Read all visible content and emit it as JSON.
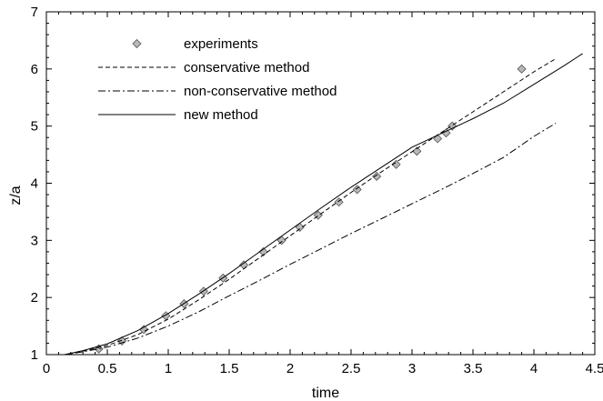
{
  "chart_data": {
    "type": "line",
    "title": "",
    "xlabel": "time",
    "ylabel": "z/a",
    "xlim": [
      0,
      4.5
    ],
    "ylim": [
      1,
      7
    ],
    "x_ticks": [
      "0",
      "0.5",
      "1",
      "1.5",
      "2",
      "2.5",
      "3",
      "3.5",
      "4",
      "4.5"
    ],
    "y_ticks": [
      "1",
      "2",
      "3",
      "4",
      "5",
      "6",
      "7"
    ],
    "grid": false,
    "legend_position": "top-left",
    "series": [
      {
        "name": "experiments",
        "style": "diamond-markers",
        "color": "#b8b8b8",
        "x": [
          0.43,
          0.62,
          0.8,
          0.98,
          1.13,
          1.29,
          1.45,
          1.62,
          1.78,
          1.93,
          2.08,
          2.23,
          2.4,
          2.55,
          2.71,
          2.87,
          3.04,
          3.21,
          3.28,
          3.33,
          3.9
        ],
        "y": [
          1.1,
          1.24,
          1.44,
          1.68,
          1.89,
          2.11,
          2.34,
          2.57,
          2.8,
          3.0,
          3.23,
          3.44,
          3.67,
          3.89,
          4.12,
          4.33,
          4.56,
          4.78,
          4.88,
          5.0,
          6.0
        ]
      },
      {
        "name": "conservative method",
        "style": "dashed",
        "color": "#000000",
        "x": [
          0,
          0.15,
          0.3,
          0.5,
          0.75,
          1.0,
          1.25,
          1.5,
          1.75,
          2.0,
          2.25,
          2.5,
          2.75,
          3.0,
          3.25,
          3.5,
          3.75,
          4.0,
          4.18
        ],
        "y": [
          1.0,
          1.0,
          1.06,
          1.16,
          1.35,
          1.62,
          1.96,
          2.32,
          2.7,
          3.08,
          3.46,
          3.84,
          4.2,
          4.55,
          4.9,
          5.25,
          5.6,
          5.95,
          6.18
        ]
      },
      {
        "name": "non-conservative method",
        "style": "dash-dot",
        "color": "#000000",
        "x": [
          0,
          0.15,
          0.3,
          0.5,
          0.75,
          1.0,
          1.25,
          1.5,
          1.75,
          2.0,
          2.25,
          2.5,
          2.75,
          3.0,
          3.25,
          3.5,
          3.75,
          4.0,
          4.18
        ],
        "y": [
          1.0,
          1.0,
          1.05,
          1.13,
          1.29,
          1.5,
          1.75,
          2.03,
          2.3,
          2.58,
          2.85,
          3.12,
          3.38,
          3.64,
          3.9,
          4.17,
          4.45,
          4.82,
          5.05
        ]
      },
      {
        "name": "new method",
        "style": "solid",
        "color": "#000000",
        "x": [
          0,
          0.15,
          0.3,
          0.5,
          0.75,
          1.0,
          1.25,
          1.5,
          1.75,
          2.0,
          2.25,
          2.5,
          2.75,
          3.0,
          3.25,
          3.5,
          3.75,
          4.0,
          4.25,
          4.4
        ],
        "y": [
          1.0,
          1.0,
          1.07,
          1.19,
          1.42,
          1.72,
          2.06,
          2.42,
          2.8,
          3.18,
          3.56,
          3.93,
          4.28,
          4.63,
          4.88,
          5.13,
          5.4,
          5.73,
          6.06,
          6.27
        ]
      }
    ]
  }
}
